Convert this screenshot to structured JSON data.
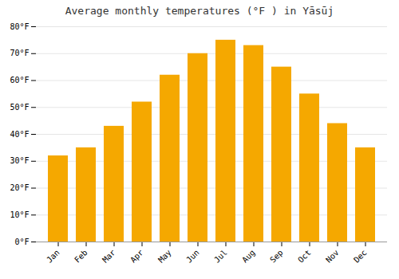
{
  "chart_data": {
    "type": "bar",
    "title": "Average monthly temperatures (°F ) in Yāsūj",
    "categories": [
      "Jan",
      "Feb",
      "Mar",
      "Apr",
      "May",
      "Jun",
      "Jul",
      "Aug",
      "Sep",
      "Oct",
      "Nov",
      "Dec"
    ],
    "values": [
      32,
      35,
      43,
      52,
      62,
      70,
      75,
      73,
      65,
      55,
      44,
      35
    ],
    "color": "#F5A800",
    "ylim": [
      0,
      80
    ],
    "yticks": [
      {
        "value": 0,
        "label": "0°F"
      },
      {
        "value": 10,
        "label": "10°F"
      },
      {
        "value": 20,
        "label": "20°F"
      },
      {
        "value": 30,
        "label": "30°F"
      },
      {
        "value": 40,
        "label": "40°F"
      },
      {
        "value": 50,
        "label": "50°F"
      },
      {
        "value": 60,
        "label": "60°F"
      },
      {
        "value": 70,
        "label": "70°F"
      },
      {
        "value": 80,
        "label": "80°F"
      }
    ],
    "grid": true
  }
}
